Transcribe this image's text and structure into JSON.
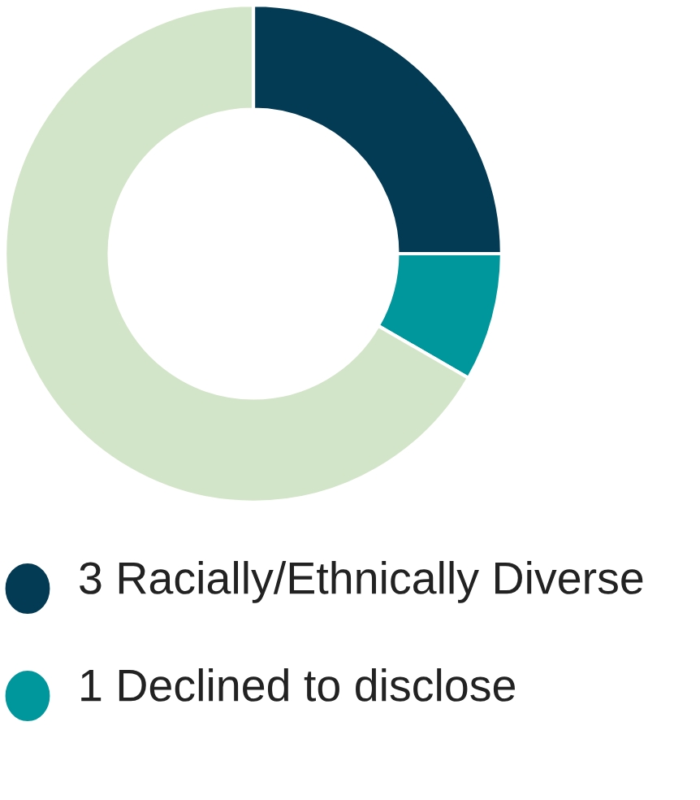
{
  "chart_data": {
    "type": "donut",
    "categories": [
      "3 Racially/Ethnically Diverse",
      "1 Declined to disclose",
      null
    ],
    "values": [
      3,
      1,
      8
    ],
    "colors": [
      "#033a54",
      "#00979c",
      "#d3e5c8"
    ],
    "legend": "bottom"
  }
}
